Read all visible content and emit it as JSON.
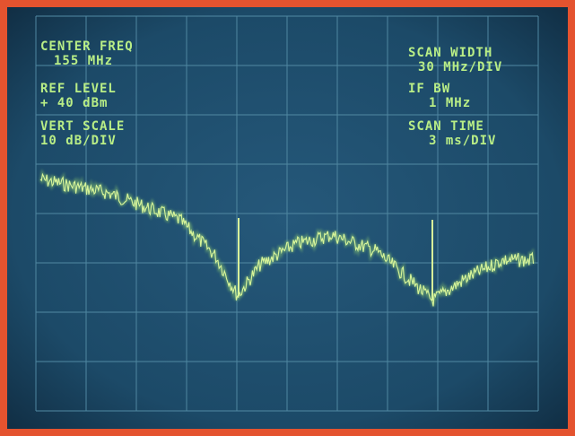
{
  "left_readouts": [
    {
      "label": "CENTER FREQ",
      "value": "155 MHz"
    },
    {
      "label": "REF LEVEL",
      "value": "+ 40 dBm"
    },
    {
      "label": "VERT SCALE",
      "value": "10 dB/DIV"
    }
  ],
  "right_readouts": [
    {
      "label": "SCAN WIDTH",
      "value": "30 MHz/DIV"
    },
    {
      "label": "IF BW",
      "value": "1 MHz"
    },
    {
      "label": "SCAN TIME",
      "value": "3 ms/DIV"
    }
  ]
}
